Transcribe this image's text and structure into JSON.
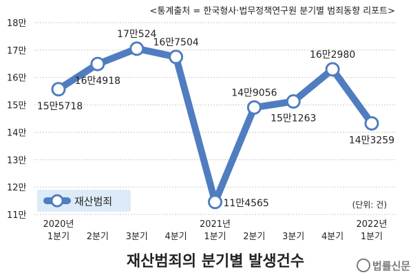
{
  "chart_data": {
    "type": "line",
    "source_note": "<통계출처 = 한국형사·법무정책연구원 분기별 범죄동향 리포트>",
    "title": "재산범죄의 분기별 발생건수",
    "unit_note": "(단위: 건)",
    "legend": "재산범죄",
    "y_ticks": [
      "18만",
      "17만",
      "16만",
      "15만",
      "14만",
      "13만",
      "12만",
      "11만"
    ],
    "ylim": [
      110000,
      180000
    ],
    "categories": [
      {
        "year": "2020년",
        "quarter": "1분기"
      },
      {
        "year": "",
        "quarter": "2분기"
      },
      {
        "year": "",
        "quarter": "3분기"
      },
      {
        "year": "",
        "quarter": "4분기"
      },
      {
        "year": "2021년",
        "quarter": "1분기"
      },
      {
        "year": "",
        "quarter": "2분기"
      },
      {
        "year": "",
        "quarter": "3분기"
      },
      {
        "year": "",
        "quarter": "4분기"
      },
      {
        "year": "2022년",
        "quarter": "1분기"
      }
    ],
    "values": [
      155718,
      164918,
      170524,
      167504,
      114565,
      149056,
      151263,
      162980,
      143259
    ],
    "labels": [
      "15만5718",
      "16만4918",
      "17만524",
      "16만7504",
      "11만4565",
      "14만9056",
      "15만1263",
      "16만2980",
      "14만3259"
    ],
    "colors": {
      "line": "#4f7dc0",
      "marker_stroke": "#4f7dc0",
      "marker_fill": "#ffffff",
      "legend_bg": "#dcebf7",
      "grid": "#c7c7c7",
      "text": "#222222"
    }
  },
  "watermark": {
    "text": "법률신문"
  }
}
